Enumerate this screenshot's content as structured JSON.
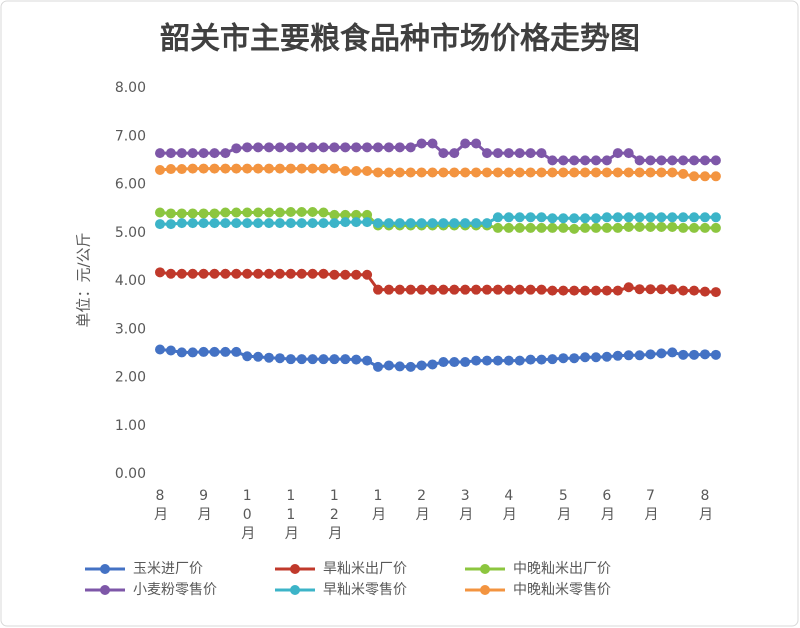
{
  "chart_data": {
    "type": "line",
    "title": "韶关市主要粮食品种市场价格走势图",
    "y_label": "单位：元/公斤",
    "categories": [
      "8月",
      null,
      null,
      null,
      "9月",
      null,
      null,
      null,
      "10月",
      null,
      null,
      null,
      "11月",
      null,
      null,
      null,
      "12月",
      null,
      null,
      null,
      "1月",
      null,
      null,
      null,
      "2月",
      null,
      null,
      null,
      "3月",
      null,
      null,
      null,
      "4月",
      null,
      null,
      null,
      null,
      "5月",
      null,
      null,
      null,
      "6月",
      null,
      null,
      null,
      "7月",
      null,
      null,
      null,
      null,
      "8月",
      null
    ],
    "series": [
      {
        "name": "玉米进厂价",
        "color": "#4472c4",
        "values": [
          2.58,
          2.56,
          2.52,
          2.52,
          2.53,
          2.53,
          2.53,
          2.53,
          2.44,
          2.43,
          2.41,
          2.4,
          2.38,
          2.38,
          2.38,
          2.38,
          2.38,
          2.38,
          2.37,
          2.35,
          2.22,
          2.25,
          2.23,
          2.22,
          2.25,
          2.27,
          2.32,
          2.32,
          2.32,
          2.35,
          2.35,
          2.35,
          2.35,
          2.35,
          2.37,
          2.37,
          2.38,
          2.4,
          2.4,
          2.42,
          2.42,
          2.43,
          2.45,
          2.46,
          2.46,
          2.48,
          2.5,
          2.52,
          2.47,
          2.47,
          2.48,
          2.47
        ]
      },
      {
        "name": "旱籼米出厂价",
        "color": "#c0392b",
        "values": [
          4.18,
          4.15,
          4.15,
          4.15,
          4.15,
          4.15,
          4.15,
          4.15,
          4.15,
          4.15,
          4.15,
          4.15,
          4.15,
          4.15,
          4.15,
          4.15,
          4.13,
          4.13,
          4.13,
          4.13,
          3.82,
          3.82,
          3.82,
          3.82,
          3.82,
          3.82,
          3.82,
          3.82,
          3.82,
          3.82,
          3.82,
          3.82,
          3.82,
          3.82,
          3.82,
          3.82,
          3.8,
          3.8,
          3.8,
          3.8,
          3.8,
          3.8,
          3.8,
          3.87,
          3.83,
          3.83,
          3.83,
          3.83,
          3.8,
          3.8,
          3.78,
          3.77
        ]
      },
      {
        "name": "中晚籼米出厂价",
        "color": "#8cc63f",
        "values": [
          5.42,
          5.4,
          5.4,
          5.4,
          5.4,
          5.4,
          5.42,
          5.42,
          5.42,
          5.42,
          5.42,
          5.42,
          5.43,
          5.43,
          5.43,
          5.42,
          5.37,
          5.37,
          5.37,
          5.37,
          5.15,
          5.15,
          5.15,
          5.15,
          5.15,
          5.15,
          5.15,
          5.15,
          5.15,
          5.15,
          5.15,
          5.1,
          5.1,
          5.1,
          5.1,
          5.1,
          5.1,
          5.1,
          5.08,
          5.1,
          5.1,
          5.1,
          5.1,
          5.12,
          5.12,
          5.12,
          5.12,
          5.12,
          5.1,
          5.1,
          5.1,
          5.1
        ]
      },
      {
        "name": "小麦粉零售价",
        "color": "#7e57a8",
        "values": [
          6.65,
          6.65,
          6.65,
          6.65,
          6.65,
          6.65,
          6.65,
          6.75,
          6.77,
          6.77,
          6.77,
          6.77,
          6.77,
          6.77,
          6.77,
          6.77,
          6.77,
          6.77,
          6.77,
          6.77,
          6.77,
          6.77,
          6.77,
          6.77,
          6.85,
          6.85,
          6.65,
          6.65,
          6.85,
          6.85,
          6.65,
          6.65,
          6.65,
          6.65,
          6.65,
          6.65,
          6.5,
          6.5,
          6.5,
          6.5,
          6.5,
          6.5,
          6.65,
          6.65,
          6.5,
          6.5,
          6.5,
          6.5,
          6.5,
          6.5,
          6.5,
          6.5
        ]
      },
      {
        "name": "早籼米零售价",
        "color": "#3cb4c8",
        "values": [
          5.18,
          5.18,
          5.2,
          5.2,
          5.2,
          5.2,
          5.2,
          5.2,
          5.2,
          5.2,
          5.2,
          5.2,
          5.2,
          5.2,
          5.2,
          5.2,
          5.2,
          5.22,
          5.22,
          5.22,
          5.2,
          5.2,
          5.2,
          5.2,
          5.2,
          5.2,
          5.2,
          5.2,
          5.2,
          5.2,
          5.2,
          5.32,
          5.32,
          5.32,
          5.32,
          5.32,
          5.3,
          5.3,
          5.3,
          5.3,
          5.3,
          5.32,
          5.32,
          5.32,
          5.32,
          5.32,
          5.32,
          5.32,
          5.32,
          5.32,
          5.32,
          5.32
        ]
      },
      {
        "name": "中晚籼米零售价",
        "color": "#f39440",
        "values": [
          6.3,
          6.32,
          6.32,
          6.33,
          6.33,
          6.33,
          6.33,
          6.33,
          6.33,
          6.33,
          6.33,
          6.33,
          6.33,
          6.33,
          6.33,
          6.33,
          6.33,
          6.28,
          6.28,
          6.28,
          6.25,
          6.25,
          6.25,
          6.25,
          6.25,
          6.25,
          6.25,
          6.25,
          6.25,
          6.25,
          6.25,
          6.25,
          6.25,
          6.25,
          6.25,
          6.25,
          6.25,
          6.25,
          6.25,
          6.25,
          6.25,
          6.25,
          6.25,
          6.25,
          6.25,
          6.25,
          6.25,
          6.25,
          6.22,
          6.17,
          6.17,
          6.17
        ]
      }
    ],
    "ylim": [
      0,
      8
    ],
    "yticks": [
      {
        "value": 0,
        "label": "0.00"
      },
      {
        "value": 1,
        "label": "1.00"
      },
      {
        "value": 2,
        "label": "2.00"
      },
      {
        "value": 3,
        "label": "3.00"
      },
      {
        "value": 4,
        "label": "4.00"
      },
      {
        "value": 5,
        "label": "5.00"
      },
      {
        "value": 6,
        "label": "6.00"
      },
      {
        "value": 7,
        "label": "7.00"
      },
      {
        "value": 8,
        "label": "8.00"
      }
    ],
    "grid": false,
    "legend": "bottom"
  }
}
